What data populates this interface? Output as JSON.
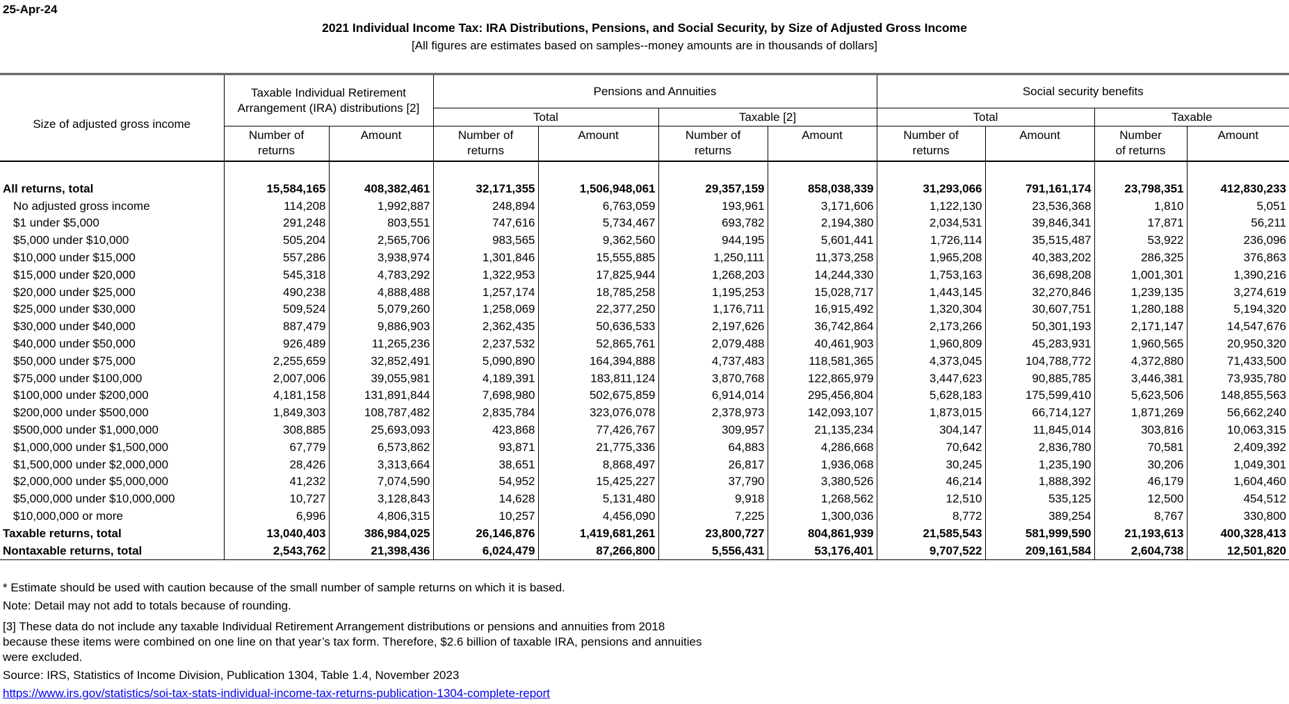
{
  "date": "25-Apr-24",
  "title": "2021 Individual Income Tax: IRA Distributions, Pensions, and Social Security, by Size of Adjusted Gross Income",
  "subtitle": "[All figures are estimates based on samples--money amounts are in thousands of dollars]",
  "headers": {
    "agi": "Size of adjusted gross income",
    "ira": "Taxable Individual Retirement Arrangement (IRA) distributions [2]",
    "pensions": "Pensions and Annuities",
    "social_security": "Social security benefits",
    "total": "Total",
    "taxable_2": "Taxable [2]",
    "taxable": "Taxable",
    "number_of_returns": "Number of returns",
    "amount": "Amount"
  },
  "rows": [
    {
      "label": "All returns, total",
      "type": "total",
      "values": [
        "15,584,165",
        "408,382,461",
        "32,171,355",
        "1,506,948,061",
        "29,357,159",
        "858,038,339",
        "31,293,066",
        "791,161,174",
        "23,798,351",
        "412,830,233"
      ]
    },
    {
      "label": "No adjusted gross income",
      "type": "detail",
      "values": [
        "114,208",
        "1,992,887",
        "248,894",
        "6,763,059",
        "193,961",
        "3,171,606",
        "1,122,130",
        "23,536,368",
        "1,810",
        "5,051"
      ]
    },
    {
      "label": "$1 under $5,000",
      "type": "detail",
      "values": [
        "291,248",
        "803,551",
        "747,616",
        "5,734,467",
        "693,782",
        "2,194,380",
        "2,034,531",
        "39,846,341",
        "17,871",
        "56,211"
      ]
    },
    {
      "label": "$5,000 under $10,000",
      "type": "detail",
      "values": [
        "505,204",
        "2,565,706",
        "983,565",
        "9,362,560",
        "944,195",
        "5,601,441",
        "1,726,114",
        "35,515,487",
        "53,922",
        "236,096"
      ]
    },
    {
      "label": "$10,000 under $15,000",
      "type": "detail",
      "values": [
        "557,286",
        "3,938,974",
        "1,301,846",
        "15,555,885",
        "1,250,111",
        "11,373,258",
        "1,965,208",
        "40,383,202",
        "286,325",
        "376,863"
      ]
    },
    {
      "label": "$15,000 under $20,000",
      "type": "detail",
      "values": [
        "545,318",
        "4,783,292",
        "1,322,953",
        "17,825,944",
        "1,268,203",
        "14,244,330",
        "1,753,163",
        "36,698,208",
        "1,001,301",
        "1,390,216"
      ]
    },
    {
      "label": "$20,000 under $25,000",
      "type": "detail",
      "values": [
        "490,238",
        "4,888,488",
        "1,257,174",
        "18,785,258",
        "1,195,253",
        "15,028,717",
        "1,443,145",
        "32,270,846",
        "1,239,135",
        "3,274,619"
      ]
    },
    {
      "label": "$25,000 under $30,000",
      "type": "detail",
      "values": [
        "509,524",
        "5,079,260",
        "1,258,069",
        "22,377,250",
        "1,176,711",
        "16,915,492",
        "1,320,304",
        "30,607,751",
        "1,280,188",
        "5,194,320"
      ]
    },
    {
      "label": "$30,000 under $40,000",
      "type": "detail",
      "values": [
        "887,479",
        "9,886,903",
        "2,362,435",
        "50,636,533",
        "2,197,626",
        "36,742,864",
        "2,173,266",
        "50,301,193",
        "2,171,147",
        "14,547,676"
      ]
    },
    {
      "label": "$40,000 under $50,000",
      "type": "detail",
      "values": [
        "926,489",
        "11,265,236",
        "2,237,532",
        "52,865,761",
        "2,079,488",
        "40,461,903",
        "1,960,809",
        "45,283,931",
        "1,960,565",
        "20,950,320"
      ]
    },
    {
      "label": "$50,000 under $75,000",
      "type": "detail",
      "values": [
        "2,255,659",
        "32,852,491",
        "5,090,890",
        "164,394,888",
        "4,737,483",
        "118,581,365",
        "4,373,045",
        "104,788,772",
        "4,372,880",
        "71,433,500"
      ]
    },
    {
      "label": "$75,000 under $100,000",
      "type": "detail",
      "values": [
        "2,007,006",
        "39,055,981",
        "4,189,391",
        "183,811,124",
        "3,870,768",
        "122,865,979",
        "3,447,623",
        "90,885,785",
        "3,446,381",
        "73,935,780"
      ]
    },
    {
      "label": "$100,000 under $200,000",
      "type": "detail",
      "values": [
        "4,181,158",
        "131,891,844",
        "7,698,980",
        "502,675,859",
        "6,914,014",
        "295,456,804",
        "5,628,183",
        "175,599,410",
        "5,623,506",
        "148,855,563"
      ]
    },
    {
      "label": "$200,000 under $500,000",
      "type": "detail",
      "values": [
        "1,849,303",
        "108,787,482",
        "2,835,784",
        "323,076,078",
        "2,378,973",
        "142,093,107",
        "1,873,015",
        "66,714,127",
        "1,871,269",
        "56,662,240"
      ]
    },
    {
      "label": "$500,000 under $1,000,000",
      "type": "detail",
      "values": [
        "308,885",
        "25,693,093",
        "423,868",
        "77,426,767",
        "309,957",
        "21,135,234",
        "304,147",
        "11,845,014",
        "303,816",
        "10,063,315"
      ]
    },
    {
      "label": "$1,000,000 under $1,500,000",
      "type": "detail",
      "values": [
        "67,779",
        "6,573,862",
        "93,871",
        "21,775,336",
        "64,883",
        "4,286,668",
        "70,642",
        "2,836,780",
        "70,581",
        "2,409,392"
      ]
    },
    {
      "label": "$1,500,000 under $2,000,000",
      "type": "detail",
      "values": [
        "28,426",
        "3,313,664",
        "38,651",
        "8,868,497",
        "26,817",
        "1,936,068",
        "30,245",
        "1,235,190",
        "30,206",
        "1,049,301"
      ]
    },
    {
      "label": "$2,000,000 under $5,000,000",
      "type": "detail",
      "values": [
        "41,232",
        "7,074,590",
        "54,952",
        "15,425,227",
        "37,790",
        "3,380,526",
        "46,214",
        "1,888,392",
        "46,179",
        "1,604,460"
      ]
    },
    {
      "label": "$5,000,000 under $10,000,000",
      "type": "detail",
      "values": [
        "10,727",
        "3,128,843",
        "14,628",
        "5,131,480",
        "9,918",
        "1,268,562",
        "12,510",
        "535,125",
        "12,500",
        "454,512"
      ]
    },
    {
      "label": "$10,000,000 or more",
      "type": "detail",
      "values": [
        "6,996",
        "4,806,315",
        "10,257",
        "4,456,090",
        "7,225",
        "1,300,036",
        "8,772",
        "389,254",
        "8,767",
        "330,800"
      ]
    },
    {
      "label": "Taxable returns, total",
      "type": "total",
      "values": [
        "13,040,403",
        "386,984,025",
        "26,146,876",
        "1,419,681,261",
        "23,800,727",
        "804,861,939",
        "21,585,543",
        "581,999,590",
        "21,193,613",
        "400,328,413"
      ]
    },
    {
      "label": "Nontaxable returns, total",
      "type": "total",
      "values": [
        "2,543,762",
        "21,398,436",
        "6,024,479",
        "87,266,800",
        "5,556,431",
        "53,176,401",
        "9,707,522",
        "209,161,584",
        "2,604,738",
        "12,501,820"
      ]
    }
  ],
  "notes": {
    "estimate": "* Estimate should be used with caution because of the small number of sample returns on which it is based.",
    "rounding": "Note:  Detail may not add to totals because of rounding.",
    "note3_line1": "[3] These data do not include any taxable Individual Retirement Arrangement distributions or pensions and annuities from 2018",
    "note3_line2": "because these items were combined on one line on that year’s tax form.  Therefore, $2.6 billion of taxable IRA, pensions and annuities",
    "note3_line3": "were excluded.",
    "source": "Source: IRS, Statistics of Income Division, Publication 1304, Table 1.4, November 2023",
    "link": "https://www.irs.gov/statistics/soi-tax-stats-individual-income-tax-returns-publication-1304-complete-report"
  }
}
